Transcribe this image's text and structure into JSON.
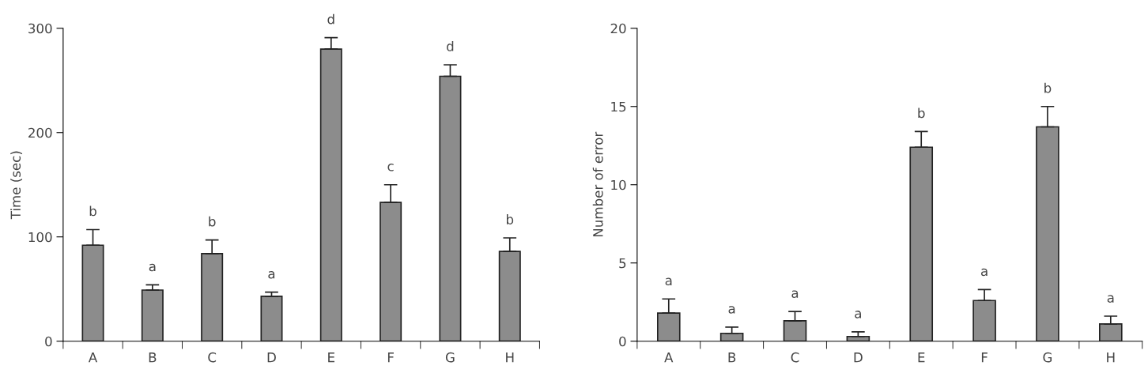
{
  "chart_data": [
    {
      "type": "bar",
      "ylabel": "Time (sec)",
      "categories": [
        "A",
        "B",
        "C",
        "D",
        "E",
        "F",
        "G",
        "H"
      ],
      "values": [
        92,
        49,
        84,
        43,
        280,
        133,
        254,
        86
      ],
      "errors": [
        [
          92,
          107
        ],
        [
          49,
          54
        ],
        [
          84,
          97
        ],
        [
          43,
          47
        ],
        [
          280,
          291
        ],
        [
          133,
          150
        ],
        [
          254,
          265
        ],
        [
          86,
          99
        ]
      ],
      "color": "#8c8c8c",
      "ylim": [
        0,
        300
      ],
      "yticks": [
        0,
        100,
        200,
        300
      ],
      "grid": false,
      "annotations": [
        "b",
        "a",
        "b",
        "a",
        "d",
        "c",
        "d",
        "b"
      ]
    },
    {
      "type": "bar",
      "ylabel": "Number of error",
      "categories": [
        "A",
        "B",
        "C",
        "D",
        "E",
        "F",
        "G",
        "H"
      ],
      "values": [
        1.8,
        0.5,
        1.3,
        0.3,
        12.4,
        2.6,
        13.7,
        1.1
      ],
      "errors": [
        [
          1.8,
          2.7
        ],
        [
          0.5,
          0.9
        ],
        [
          1.3,
          1.9
        ],
        [
          0.3,
          0.6
        ],
        [
          12.4,
          13.4
        ],
        [
          2.6,
          3.3
        ],
        [
          13.7,
          15.0
        ],
        [
          1.1,
          1.6
        ]
      ],
      "color": "#8c8c8c",
      "ylim": [
        0,
        20
      ],
      "yticks": [
        0,
        5,
        10,
        15,
        20
      ],
      "grid": false,
      "annotations": [
        "a",
        "a",
        "a",
        "a",
        "b",
        "a",
        "b",
        "a"
      ]
    }
  ]
}
